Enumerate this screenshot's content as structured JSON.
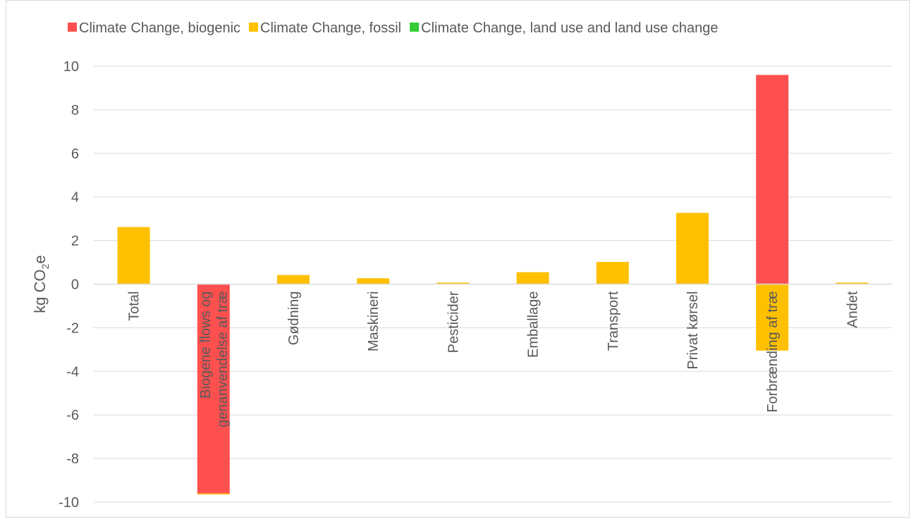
{
  "chart_data": {
    "type": "bar",
    "stacked": true,
    "ylabel": "kg CO",
    "ylabel_sub": "2",
    "ylabel_suffix": "e",
    "ylim": [
      -10,
      10
    ],
    "yticks": [
      10,
      8,
      6,
      4,
      2,
      0,
      -2,
      -4,
      -6,
      -8,
      -10
    ],
    "grid": true,
    "legend_position": "top",
    "categories": [
      [
        "Total"
      ],
      [
        "Biogene flows og",
        "genanvendelse af træ"
      ],
      [
        "Gødning"
      ],
      [
        "Maskineri"
      ],
      [
        "Pesticider"
      ],
      [
        "Emballage"
      ],
      [
        "Transport"
      ],
      [
        "Privat kørsel"
      ],
      [
        "Forbrænding af træ"
      ],
      [
        "Andet"
      ]
    ],
    "series": [
      {
        "name": "Climate Change, biogenic",
        "color": "#ff5050",
        "values": [
          0,
          -9.6,
          0,
          0,
          0,
          0,
          0,
          0,
          9.6,
          0
        ]
      },
      {
        "name": "Climate Change, fossil",
        "color": "#ffc000",
        "values": [
          2.62,
          -0.05,
          0.42,
          0.27,
          0.07,
          0.55,
          1.02,
          3.27,
          -3.05,
          0.07
        ]
      },
      {
        "name": "Climate Change, land use and land use change",
        "color": "#33cc33",
        "values": [
          0,
          0,
          0,
          0,
          0,
          0,
          0,
          0,
          0,
          0
        ]
      }
    ]
  }
}
